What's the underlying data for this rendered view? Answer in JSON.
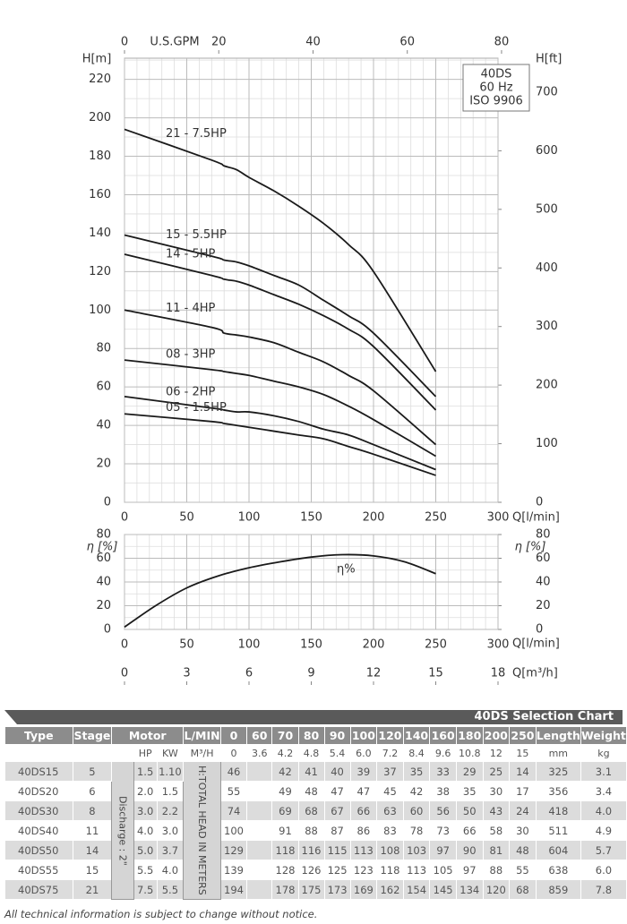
{
  "chart_data": [
    {
      "type": "line",
      "x": [
        0,
        70,
        80,
        90,
        100,
        120,
        140,
        160,
        180,
        200,
        250
      ],
      "xlim": [
        0,
        300
      ],
      "xticks": [
        0,
        50,
        100,
        150,
        200,
        250,
        300
      ],
      "xlabel": "Q[l/min]",
      "x2lim": [
        0,
        79.25
      ],
      "x2ticks": [
        0,
        20,
        40,
        60,
        80
      ],
      "x2label": "U.S.GPM",
      "ylim": [
        0,
        231
      ],
      "yticks": [
        0,
        20,
        40,
        60,
        80,
        100,
        120,
        140,
        160,
        180,
        200,
        220
      ],
      "ylabel": "H[m]",
      "y2lim": [
        0,
        758
      ],
      "y2ticks": [
        0,
        100,
        200,
        300,
        400,
        500,
        600,
        700
      ],
      "y2label": "H[ft]",
      "annotation": [
        "40DS",
        "60 Hz",
        "ISO 9906"
      ],
      "grid": true,
      "series": [
        {
          "name": "21 - 7.5HP",
          "color": "#1a1a1a",
          "values": [
            194,
            178,
            175,
            173,
            169,
            162,
            154,
            145,
            134,
            120,
            68
          ]
        },
        {
          "name": "15 - 5.5HP",
          "color": "#1a1a1a",
          "values": [
            139,
            128,
            126,
            125,
            123,
            118,
            113,
            105,
            97,
            88,
            55
          ]
        },
        {
          "name": "14 - 5HP",
          "color": "#1a1a1a",
          "values": [
            129,
            118,
            116,
            115,
            113,
            108,
            103,
            97,
            90,
            81,
            48
          ]
        },
        {
          "name": "11 - 4HP",
          "color": "#1a1a1a",
          "values": [
            100,
            91,
            88,
            87,
            86,
            83,
            78,
            73,
            66,
            58,
            30
          ]
        },
        {
          "name": "08 - 3HP",
          "color": "#1a1a1a",
          "values": [
            74,
            69,
            68,
            67,
            66,
            63,
            60,
            56,
            50,
            43,
            24
          ]
        },
        {
          "name": "06 - 2HP",
          "color": "#1a1a1a",
          "values": [
            55,
            49,
            48,
            47,
            47,
            45,
            42,
            38,
            35,
            30,
            17
          ]
        },
        {
          "name": "05 - 1.5HP",
          "color": "#1a1a1a",
          "values": [
            46,
            42,
            41,
            40,
            39,
            37,
            35,
            33,
            29,
            25,
            14
          ]
        }
      ]
    },
    {
      "type": "line",
      "x": [
        0,
        25,
        50,
        75,
        100,
        125,
        150,
        175,
        200,
        225,
        250
      ],
      "xlim": [
        0,
        300
      ],
      "xticks": [
        0,
        50,
        100,
        150,
        200,
        250,
        300
      ],
      "xlabel": "Q[l/min]",
      "x2lim": [
        0,
        18
      ],
      "x2ticks": [
        0,
        3,
        6,
        9,
        12,
        15,
        18
      ],
      "x2label": "Q[m³/h]",
      "ylim": [
        0,
        80
      ],
      "yticks": [
        0,
        20,
        40,
        60,
        80
      ],
      "ylabel": "η [%]",
      "y2lim": [
        0,
        80
      ],
      "y2ticks": [
        0,
        20,
        40,
        60,
        80
      ],
      "y2label": "η [%]",
      "grid": true,
      "series": [
        {
          "name": "η%",
          "color": "#1a1a1a",
          "values": [
            2,
            20,
            35,
            45,
            52,
            57,
            61,
            63,
            62,
            57,
            47
          ]
        }
      ]
    }
  ],
  "table": {
    "title": "40DS Selection Chart",
    "header": {
      "type": "Type",
      "stage": "Stage",
      "motor": "Motor",
      "flow_unit": "L/MIN",
      "flows": [
        "0",
        "60",
        "70",
        "80",
        "90",
        "100",
        "120",
        "140",
        "160",
        "180",
        "200",
        "250"
      ],
      "length": "Length",
      "weight": "Weight"
    },
    "subheader": {
      "hp": "HP",
      "kw": "KW",
      "flow_unit": "M³/H",
      "flows": [
        "0",
        "3.6",
        "4.2",
        "4.8",
        "5.4",
        "6.0",
        "7.2",
        "8.4",
        "9.6",
        "10.8",
        "12",
        "15"
      ],
      "length": "mm",
      "weight": "kg"
    },
    "discharge": "Discharge : 2\"",
    "head_note": "H:TOTAL HEAD IN METERS",
    "rows": [
      {
        "type": "40DS15",
        "stage": "5",
        "hp": "1.5",
        "kw": "1.10",
        "heads": [
          "46",
          null,
          "42",
          "41",
          "40",
          "39",
          "37",
          "35",
          "33",
          "29",
          "25",
          "14"
        ],
        "length": "325",
        "weight": "3.1"
      },
      {
        "type": "40DS20",
        "stage": "6",
        "hp": "2.0",
        "kw": "1.5",
        "heads": [
          "55",
          null,
          "49",
          "48",
          "47",
          "47",
          "45",
          "42",
          "38",
          "35",
          "30",
          "17"
        ],
        "length": "356",
        "weight": "3.4"
      },
      {
        "type": "40DS30",
        "stage": "8",
        "hp": "3.0",
        "kw": "2.2",
        "heads": [
          "74",
          null,
          "69",
          "68",
          "67",
          "66",
          "63",
          "60",
          "56",
          "50",
          "43",
          "24"
        ],
        "length": "418",
        "weight": "4.0"
      },
      {
        "type": "40DS40",
        "stage": "11",
        "hp": "4.0",
        "kw": "3.0",
        "heads": [
          "100",
          null,
          "91",
          "88",
          "87",
          "86",
          "83",
          "78",
          "73",
          "66",
          "58",
          "30"
        ],
        "length": "511",
        "weight": "4.9"
      },
      {
        "type": "40DS50",
        "stage": "14",
        "hp": "5.0",
        "kw": "3.7",
        "heads": [
          "129",
          null,
          "118",
          "116",
          "115",
          "113",
          "108",
          "103",
          "97",
          "90",
          "81",
          "48"
        ],
        "length": "604",
        "weight": "5.7"
      },
      {
        "type": "40DS55",
        "stage": "15",
        "hp": "5.5",
        "kw": "4.0",
        "heads": [
          "139",
          null,
          "128",
          "126",
          "125",
          "123",
          "118",
          "113",
          "105",
          "97",
          "88",
          "55"
        ],
        "length": "638",
        "weight": "6.0"
      },
      {
        "type": "40DS75",
        "stage": "21",
        "hp": "7.5",
        "kw": "5.5",
        "heads": [
          "194",
          null,
          "178",
          "175",
          "173",
          "169",
          "162",
          "154",
          "145",
          "134",
          "120",
          "68"
        ],
        "length": "859",
        "weight": "7.8"
      }
    ]
  },
  "footnote": "All technical information is subject to change without notice."
}
